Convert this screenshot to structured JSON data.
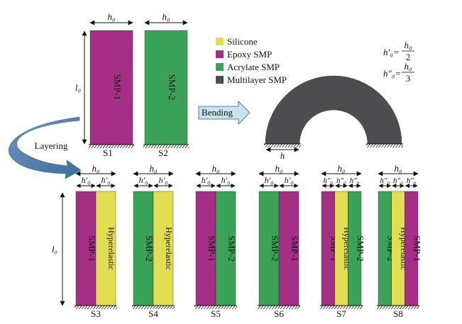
{
  "colors": {
    "silicone": "#e2de52",
    "epoxy": "#a42f85",
    "acrylate": "#3aa358",
    "multilayer": "#4d4d4f",
    "arrow_blue": "#4f7eaa",
    "bending_fill": "#c8e3ee"
  },
  "legend": [
    {
      "label": "Silicone",
      "color_key": "silicone"
    },
    {
      "label": "Epoxy SMP",
      "color_key": "epoxy"
    },
    {
      "label": "Acrylate SMP",
      "color_key": "acrylate"
    },
    {
      "label": "Multilayer SMP",
      "color_key": "multilayer"
    }
  ],
  "formulas": {
    "f1_lhs": "h′₀=",
    "f1_num": "h₀",
    "f1_den": "2",
    "f2_lhs": "h″₀=",
    "f2_num": "h₀",
    "f2_den": "3"
  },
  "dims": {
    "h0": "h₀",
    "l0": "l₀",
    "hp": "h′₀",
    "hpp": "h″₀",
    "h": "h"
  },
  "labels": {
    "bending": "Bending",
    "layering": "Layering"
  },
  "top_samples": [
    {
      "id": "S1",
      "strip": "SMP-1",
      "color_key": "epoxy"
    },
    {
      "id": "S2",
      "strip": "SMP-2",
      "color_key": "acrylate"
    }
  ],
  "bottom_samples": [
    {
      "id": "S3",
      "strips": [
        {
          "text": "SMP-1",
          "color_key": "epoxy"
        },
        {
          "text": "Hyperelastic",
          "color_key": "silicone"
        }
      ]
    },
    {
      "id": "S4",
      "strips": [
        {
          "text": "SMP-2",
          "color_key": "acrylate"
        },
        {
          "text": "Hyperelastic",
          "color_key": "silicone"
        }
      ]
    },
    {
      "id": "S5",
      "strips": [
        {
          "text": "SMP-1",
          "color_key": "epoxy"
        },
        {
          "text": "SMP-2",
          "color_key": "acrylate"
        }
      ]
    },
    {
      "id": "S6",
      "strips": [
        {
          "text": "SMP-2",
          "color_key": "acrylate"
        },
        {
          "text": "SMP-1",
          "color_key": "epoxy"
        }
      ]
    },
    {
      "id": "S7",
      "strips": [
        {
          "text": "SMP-1",
          "color_key": "epoxy"
        },
        {
          "text": "Hyperelastic",
          "color_key": "silicone"
        },
        {
          "text": "SMP-2",
          "color_key": "acrylate"
        }
      ]
    },
    {
      "id": "S8",
      "strips": [
        {
          "text": "SMP-2",
          "color_key": "acrylate"
        },
        {
          "text": "Hyperelastic",
          "color_key": "silicone"
        },
        {
          "text": "SMP-1",
          "color_key": "epoxy"
        }
      ]
    }
  ]
}
